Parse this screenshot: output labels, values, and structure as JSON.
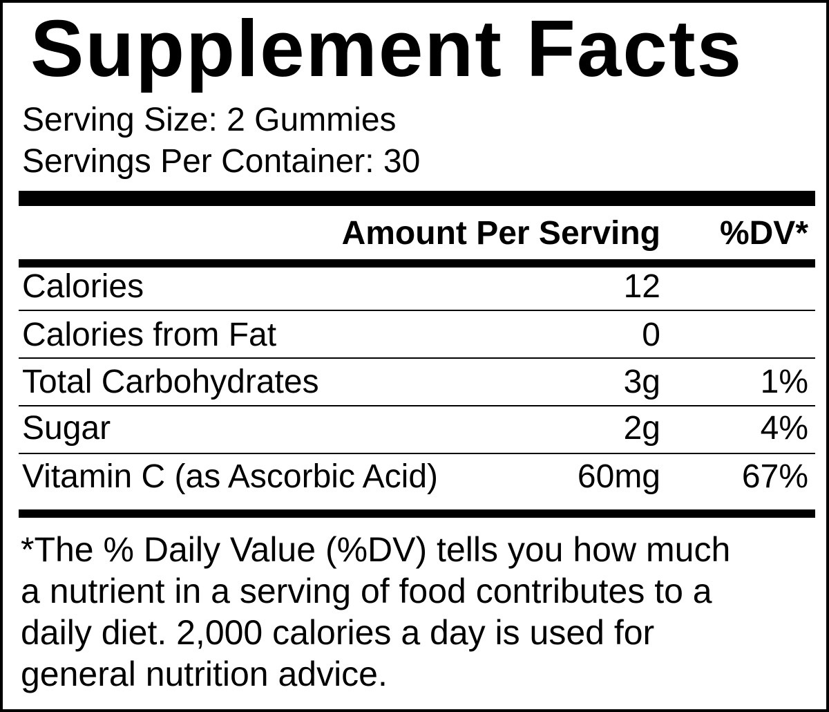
{
  "title": "Supplement Facts",
  "serving_size": "Serving Size: 2 Gummies",
  "servings_per_container": "Servings Per Container: 30",
  "table": {
    "header": {
      "amount": "Amount Per Serving",
      "dv": "%DV*"
    },
    "rows": [
      {
        "label": "Calories",
        "amount": "12",
        "dv": null
      },
      {
        "label": "Calories from Fat",
        "amount": "0",
        "dv": null
      },
      {
        "label": "Total Carbohydrates",
        "amount": "3g",
        "dv": "1%"
      },
      {
        "label": "Sugar",
        "amount": "2g",
        "dv": "4%"
      },
      {
        "label": "Vitamin C (as Ascorbic Acid)",
        "amount": "60mg",
        "dv": "67%"
      }
    ]
  },
  "footnote": [
    "*The % Daily Value (%DV) tells you how much",
    "a nutrient in a serving of food contributes to a",
    "daily diet. 2,000 calories a day is used for",
    "general nutrition advice."
  ]
}
